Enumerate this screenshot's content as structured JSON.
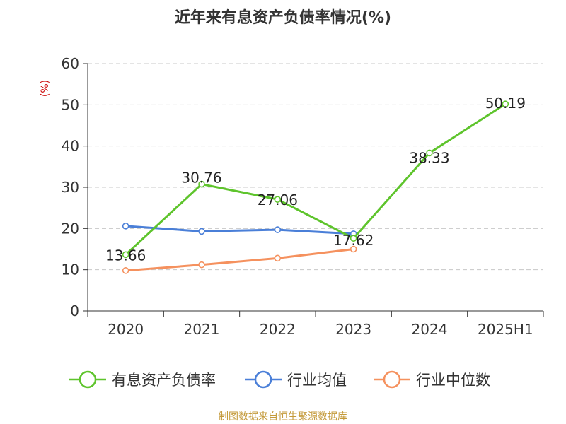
{
  "colors": {
    "series_1": "#5ec42c",
    "series_2": "#4a7fd8",
    "series_3": "#f5915e",
    "ylabel": "#cc0000",
    "footer": "#c49a3a",
    "grid": "#c8c8c8",
    "axis": "#333333"
  },
  "chart_data": {
    "type": "line",
    "title": "近年来有息资产负债率情况(%)",
    "ylabel": "(%)",
    "xlabel": "",
    "categories": [
      "2020",
      "2021",
      "2022",
      "2023",
      "2024",
      "2025H1"
    ],
    "ylim": [
      0,
      60
    ],
    "yticks": [
      0,
      10,
      20,
      30,
      40,
      50,
      60
    ],
    "grid": true,
    "legend_position": "bottom",
    "series": [
      {
        "name": "有息资产负债率",
        "values": [
          13.66,
          30.76,
          27.06,
          17.62,
          38.33,
          50.19
        ],
        "labels": [
          "13.66",
          "30.76",
          "27.06",
          "17.62",
          "38.33",
          "50.19"
        ]
      },
      {
        "name": "行业均值",
        "values": [
          20.6,
          19.3,
          19.7,
          18.7,
          null,
          null
        ]
      },
      {
        "name": "行业中位数",
        "values": [
          9.8,
          11.2,
          12.8,
          15.0,
          null,
          null
        ]
      }
    ]
  },
  "footer": "制图数据来自恒生聚源数据库"
}
